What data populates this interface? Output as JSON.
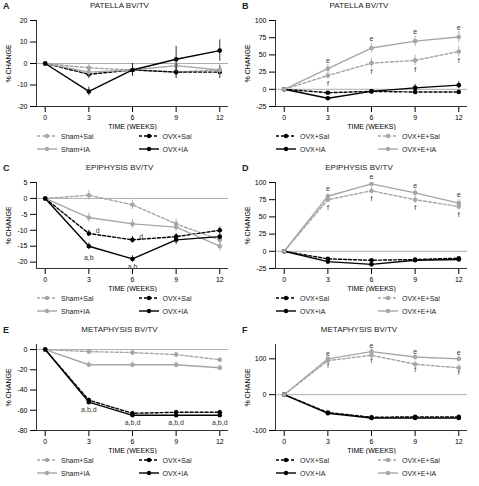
{
  "chart_data": [
    {
      "type": "line",
      "panel_label": "A",
      "title": "PATELLA BV/TV",
      "x_label": "TIME (WEEKS)",
      "y_label": "% CHANGE",
      "x": [
        0,
        3,
        6,
        9,
        12
      ],
      "xlim": [
        -0.6,
        12.6
      ],
      "xticks": [
        0,
        3,
        6,
        9,
        12
      ],
      "ylim": [
        -20,
        20
      ],
      "yticks": [
        -20,
        -10,
        0,
        10,
        20
      ],
      "baseline": 0,
      "legend": "bottom",
      "grid": false,
      "series": [
        {
          "name": "Sham+Sal",
          "color": "#a6a6a6",
          "line_style": "dashed",
          "marker": "circle",
          "values": [
            0,
            -2,
            -3,
            -4,
            -3
          ],
          "errors": [
            0,
            2,
            2,
            2,
            2
          ]
        },
        {
          "name": "OVX+Sal",
          "color": "#000000",
          "line_style": "dashed",
          "marker": "circle",
          "values": [
            0,
            -5,
            -3,
            -4,
            -4
          ],
          "errors": [
            0,
            2,
            2,
            3,
            3
          ]
        },
        {
          "name": "Sham+IA",
          "color": "#a6a6a6",
          "line_style": "solid",
          "marker": "circle",
          "values": [
            0,
            -4,
            -3,
            -1,
            -3
          ],
          "errors": [
            0,
            2,
            3,
            3,
            3
          ]
        },
        {
          "name": "OVX+IA",
          "color": "#000000",
          "line_style": "solid",
          "marker": "circle",
          "values": [
            0,
            -13,
            -3,
            2,
            6
          ],
          "errors": [
            0,
            2,
            3,
            6,
            5
          ]
        }
      ],
      "annotations": []
    },
    {
      "type": "line",
      "panel_label": "B",
      "title": "PATELLA BV/TV",
      "x_label": "TIME (WEEKS)",
      "y_label": "% CHANGE",
      "x": [
        0,
        3,
        6,
        9,
        12
      ],
      "xlim": [
        -0.6,
        12.6
      ],
      "xticks": [
        0,
        3,
        6,
        9,
        12
      ],
      "ylim": [
        -25,
        100
      ],
      "yticks": [
        -25,
        0,
        25,
        50,
        75,
        100
      ],
      "baseline": 0,
      "legend": "bottom",
      "grid": false,
      "series": [
        {
          "name": "OVX+Sal",
          "color": "#000000",
          "line_style": "dashed",
          "marker": "circle",
          "values": [
            0,
            -5,
            -3,
            -4,
            -4
          ],
          "errors": [
            0,
            2,
            2,
            3,
            3
          ]
        },
        {
          "name": "OVX+E+Sal",
          "color": "#a6a6a6",
          "line_style": "dashed",
          "marker": "circle",
          "values": [
            0,
            20,
            38,
            42,
            55
          ],
          "errors": [
            0,
            5,
            7,
            8,
            8
          ]
        },
        {
          "name": "OVX+IA",
          "color": "#000000",
          "line_style": "solid",
          "marker": "circle",
          "values": [
            0,
            -13,
            -3,
            2,
            6
          ],
          "errors": [
            0,
            2,
            3,
            5,
            5
          ]
        },
        {
          "name": "OVX+E+IA",
          "color": "#a6a6a6",
          "line_style": "solid",
          "marker": "circle",
          "values": [
            0,
            30,
            60,
            70,
            76
          ],
          "errors": [
            0,
            6,
            7,
            8,
            8
          ]
        }
      ],
      "annotations": [
        {
          "x": 3,
          "y": 42,
          "text": "e"
        },
        {
          "x": 6,
          "y": 73,
          "text": "e"
        },
        {
          "x": 9,
          "y": 84,
          "text": "e"
        },
        {
          "x": 12,
          "y": 90,
          "text": "e"
        },
        {
          "x": 3,
          "y": 8,
          "text": "f"
        },
        {
          "x": 6,
          "y": 26,
          "text": "f"
        },
        {
          "x": 9,
          "y": 28,
          "text": "f"
        },
        {
          "x": 12,
          "y": 42,
          "text": "f"
        }
      ]
    },
    {
      "type": "line",
      "panel_label": "C",
      "title": "EPIPHYSIS BV/TV",
      "x_label": "TIME (WEEKS)",
      "y_label": "% CHANGE",
      "x": [
        0,
        3,
        6,
        9,
        12
      ],
      "xlim": [
        -0.6,
        12.6
      ],
      "xticks": [
        0,
        3,
        6,
        9,
        12
      ],
      "ylim": [
        -22,
        5
      ],
      "yticks": [
        -20,
        -15,
        -10,
        -5,
        0,
        5
      ],
      "baseline": 0,
      "legend": "bottom",
      "grid": false,
      "series": [
        {
          "name": "Sham+Sal",
          "color": "#a6a6a6",
          "line_style": "dashed",
          "marker": "circle",
          "values": [
            0,
            1,
            -2,
            -8,
            -13
          ],
          "errors": [
            0,
            1.5,
            1.5,
            1.5,
            1.5
          ]
        },
        {
          "name": "OVX+Sal",
          "color": "#000000",
          "line_style": "dashed",
          "marker": "circle",
          "values": [
            0,
            -11,
            -13,
            -12,
            -10
          ],
          "errors": [
            0,
            1,
            1,
            1,
            1
          ]
        },
        {
          "name": "Sham+IA",
          "color": "#a6a6a6",
          "line_style": "solid",
          "marker": "circle",
          "values": [
            0,
            -6,
            -8,
            -9,
            -15
          ],
          "errors": [
            0,
            1.5,
            1.5,
            1.5,
            1.5
          ]
        },
        {
          "name": "OVX+IA",
          "color": "#000000",
          "line_style": "solid",
          "marker": "circle",
          "values": [
            0,
            -15,
            -19,
            -13,
            -12
          ],
          "errors": [
            0,
            1,
            1,
            1.5,
            1
          ]
        }
      ],
      "annotations": [
        {
          "x": 3.6,
          "y": -10,
          "text": "d"
        },
        {
          "x": 6.6,
          "y": -12,
          "text": "d"
        },
        {
          "x": 3,
          "y": -18.5,
          "text": "a,b"
        },
        {
          "x": 6,
          "y": -21.5,
          "text": "a,b"
        }
      ]
    },
    {
      "type": "line",
      "panel_label": "D",
      "title": "EPIPHYSIS BV/TV",
      "x_label": "TIME (WEEKS)",
      "y_label": "% CHANGE",
      "x": [
        0,
        3,
        6,
        9,
        12
      ],
      "xlim": [
        -0.6,
        12.6
      ],
      "xticks": [
        0,
        3,
        6,
        9,
        12
      ],
      "ylim": [
        -25,
        100
      ],
      "yticks": [
        -25,
        0,
        25,
        50,
        75,
        100
      ],
      "baseline": 0,
      "legend": "bottom",
      "grid": false,
      "series": [
        {
          "name": "OVX+Sal",
          "color": "#000000",
          "line_style": "dashed",
          "marker": "circle",
          "values": [
            0,
            -11,
            -13,
            -12,
            -10
          ],
          "errors": [
            0,
            1,
            1,
            1,
            1
          ]
        },
        {
          "name": "OVX+E+Sal",
          "color": "#a6a6a6",
          "line_style": "dashed",
          "marker": "circle",
          "values": [
            0,
            75,
            88,
            75,
            65
          ],
          "errors": [
            0,
            4,
            5,
            5,
            5
          ]
        },
        {
          "name": "OVX+IA",
          "color": "#000000",
          "line_style": "solid",
          "marker": "circle",
          "values": [
            0,
            -15,
            -19,
            -13,
            -12
          ],
          "errors": [
            0,
            1,
            1,
            1,
            1
          ]
        },
        {
          "name": "OVX+E+IA",
          "color": "#a6a6a6",
          "line_style": "solid",
          "marker": "circle",
          "values": [
            0,
            80,
            98,
            85,
            70
          ],
          "errors": [
            0,
            4,
            4,
            5,
            5
          ]
        }
      ],
      "annotations": [
        {
          "x": 3,
          "y": 91,
          "text": "e"
        },
        {
          "x": 6,
          "y": 108,
          "text": "e"
        },
        {
          "x": 9,
          "y": 96,
          "text": "e"
        },
        {
          "x": 12,
          "y": 82,
          "text": "e"
        },
        {
          "x": 3,
          "y": 63,
          "text": "f"
        },
        {
          "x": 6,
          "y": 76,
          "text": "f"
        },
        {
          "x": 9,
          "y": 63,
          "text": "f"
        },
        {
          "x": 12,
          "y": 53,
          "text": "f"
        }
      ]
    },
    {
      "type": "line",
      "panel_label": "E",
      "title": "METAPHYSIS BV/TV",
      "x_label": "TIME (WEEKS)",
      "y_label": "% CHANGE",
      "x": [
        0,
        3,
        6,
        9,
        12
      ],
      "xlim": [
        -0.6,
        12.6
      ],
      "xticks": [
        0,
        3,
        6,
        9,
        12
      ],
      "ylim": [
        -80,
        5
      ],
      "yticks": [
        -80,
        -60,
        -40,
        -20,
        0
      ],
      "baseline": 0,
      "legend": "bottom",
      "grid": false,
      "series": [
        {
          "name": "Sham+Sal",
          "color": "#a6a6a6",
          "line_style": "dashed",
          "marker": "circle",
          "values": [
            0,
            -2,
            -3,
            -5,
            -10
          ],
          "errors": [
            0,
            2,
            2,
            2,
            2
          ]
        },
        {
          "name": "OVX+Sal",
          "color": "#000000",
          "line_style": "dashed",
          "marker": "circle",
          "values": [
            0,
            -50,
            -63,
            -62,
            -62
          ],
          "errors": [
            0,
            2,
            2,
            2,
            2
          ]
        },
        {
          "name": "Sham+IA",
          "color": "#a6a6a6",
          "line_style": "solid",
          "marker": "circle",
          "values": [
            0,
            -15,
            -15,
            -15,
            -18
          ],
          "errors": [
            0,
            3,
            3,
            3,
            3
          ]
        },
        {
          "name": "OVX+IA",
          "color": "#000000",
          "line_style": "solid",
          "marker": "circle",
          "values": [
            0,
            -52,
            -65,
            -65,
            -65
          ],
          "errors": [
            0,
            2,
            2,
            2,
            2
          ]
        }
      ],
      "annotations": [
        {
          "x": 3,
          "y": -59,
          "text": "a,b,d"
        },
        {
          "x": 6,
          "y": -72,
          "text": "a,b,d"
        },
        {
          "x": 9,
          "y": -72,
          "text": "a,b,d"
        },
        {
          "x": 12,
          "y": -72,
          "text": "a,b,d"
        }
      ]
    },
    {
      "type": "line",
      "panel_label": "F",
      "title": "METAPHYSIS BV/TV",
      "x_label": "TIME (WEEKS)",
      "y_label": "% CHANGE",
      "x": [
        0,
        3,
        6,
        9,
        12
      ],
      "xlim": [
        -0.6,
        12.6
      ],
      "xticks": [
        0,
        3,
        6,
        9,
        12
      ],
      "ylim": [
        -100,
        140
      ],
      "yticks": [
        -100,
        0,
        100
      ],
      "baseline": 0,
      "legend": "bottom",
      "grid": false,
      "series": [
        {
          "name": "OVX+Sal",
          "color": "#000000",
          "line_style": "dashed",
          "marker": "circle",
          "values": [
            0,
            -50,
            -63,
            -62,
            -62
          ],
          "errors": [
            0,
            2,
            2,
            2,
            2
          ]
        },
        {
          "name": "OVX+E+Sal",
          "color": "#a6a6a6",
          "line_style": "dashed",
          "marker": "circle",
          "values": [
            0,
            95,
            110,
            85,
            75
          ],
          "errors": [
            0,
            6,
            8,
            8,
            8
          ]
        },
        {
          "name": "OVX+IA",
          "color": "#000000",
          "line_style": "solid",
          "marker": "circle",
          "values": [
            0,
            -52,
            -65,
            -65,
            -65
          ],
          "errors": [
            0,
            2,
            2,
            2,
            2
          ]
        },
        {
          "name": "OVX+E+IA",
          "color": "#a6a6a6",
          "line_style": "solid",
          "marker": "circle",
          "values": [
            0,
            100,
            120,
            105,
            100
          ],
          "errors": [
            0,
            6,
            8,
            8,
            8
          ]
        }
      ],
      "annotations": [
        {
          "x": 3,
          "y": 114,
          "text": "e"
        },
        {
          "x": 6,
          "y": 136,
          "text": "e"
        },
        {
          "x": 9,
          "y": 121,
          "text": "e"
        },
        {
          "x": 12,
          "y": 116,
          "text": "e"
        },
        {
          "x": 3,
          "y": 80,
          "text": "f"
        },
        {
          "x": 6,
          "y": 94,
          "text": "f"
        },
        {
          "x": 9,
          "y": 70,
          "text": "f"
        },
        {
          "x": 12,
          "y": 60,
          "text": "f"
        }
      ]
    }
  ]
}
